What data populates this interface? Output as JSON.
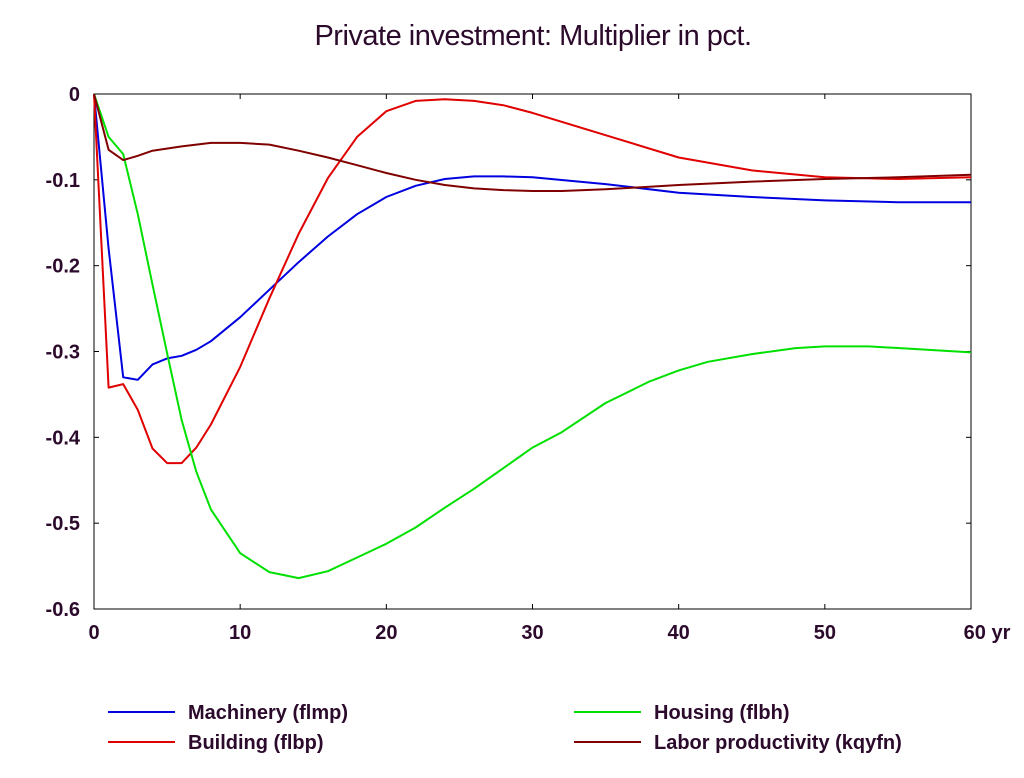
{
  "chart_data": {
    "type": "line",
    "title": "Private investment: Multiplier in pct.",
    "xlim": [
      0,
      60
    ],
    "ylim": [
      -0.6,
      0
    ],
    "x_ticks": [
      0,
      10,
      20,
      30,
      40,
      50,
      60
    ],
    "x_tick_labels": [
      "0",
      "10",
      "20",
      "30",
      "40",
      "50",
      "60 yr"
    ],
    "y_ticks": [
      0,
      -0.1,
      -0.2,
      -0.3,
      -0.4,
      -0.5,
      -0.6
    ],
    "y_tick_labels": [
      "0",
      "-0.1",
      "-0.2",
      "-0.3",
      "-0.4",
      "-0.5",
      "-0.6"
    ],
    "grid": false,
    "legend_position": "bottom",
    "series": [
      {
        "name": "Machinery (flmp)",
        "color": "#0000e0",
        "x": [
          0,
          1,
          2,
          3,
          4,
          5,
          6,
          7,
          8,
          10,
          12,
          14,
          16,
          18,
          20,
          22,
          24,
          26,
          28,
          30,
          35,
          40,
          45,
          50,
          55,
          60
        ],
        "y": [
          0,
          -0.18,
          -0.33,
          -0.333,
          -0.315,
          -0.308,
          -0.305,
          -0.298,
          -0.288,
          -0.26,
          -0.228,
          -0.196,
          -0.166,
          -0.14,
          -0.12,
          -0.107,
          -0.099,
          -0.096,
          -0.096,
          -0.097,
          -0.105,
          -0.115,
          -0.12,
          -0.124,
          -0.126,
          -0.126
        ]
      },
      {
        "name": "Building (flbp)",
        "color": "#e00000",
        "x": [
          0,
          1,
          2,
          3,
          4,
          5,
          6,
          7,
          8,
          10,
          12,
          14,
          16,
          18,
          20,
          22,
          24,
          26,
          28,
          30,
          35,
          40,
          45,
          50,
          55,
          60
        ],
        "y": [
          0,
          -0.342,
          -0.338,
          -0.368,
          -0.413,
          -0.43,
          -0.43,
          -0.412,
          -0.385,
          -0.318,
          -0.238,
          -0.163,
          -0.098,
          -0.05,
          -0.02,
          -0.008,
          -0.006,
          -0.008,
          -0.013,
          -0.022,
          -0.048,
          -0.074,
          -0.089,
          -0.097,
          -0.099,
          -0.097
        ]
      },
      {
        "name": "Housing (flbh)",
        "color": "#00e000",
        "x": [
          0,
          1,
          2,
          3,
          4,
          5,
          6,
          7,
          8,
          10,
          12,
          14,
          16,
          18,
          20,
          22,
          24,
          26,
          28,
          30,
          32,
          35,
          38,
          40,
          42,
          45,
          48,
          50,
          53,
          56,
          60
        ],
        "y": [
          0,
          -0.05,
          -0.07,
          -0.14,
          -0.222,
          -0.302,
          -0.38,
          -0.44,
          -0.484,
          -0.535,
          -0.557,
          -0.564,
          -0.556,
          -0.54,
          -0.524,
          -0.505,
          -0.482,
          -0.46,
          -0.436,
          -0.412,
          -0.394,
          -0.36,
          -0.335,
          -0.322,
          -0.312,
          -0.303,
          -0.296,
          -0.294,
          -0.294,
          -0.297,
          -0.301
        ]
      },
      {
        "name": "Labor productivity (kqyfn)",
        "color": "#800000",
        "x": [
          0,
          1,
          2,
          3,
          4,
          6,
          8,
          10,
          12,
          14,
          16,
          18,
          20,
          22,
          24,
          26,
          28,
          30,
          32,
          35,
          40,
          45,
          50,
          55,
          60
        ],
        "y": [
          0,
          -0.065,
          -0.077,
          -0.072,
          -0.066,
          -0.061,
          -0.057,
          -0.057,
          -0.059,
          -0.066,
          -0.074,
          -0.083,
          -0.092,
          -0.1,
          -0.106,
          -0.11,
          -0.112,
          -0.113,
          -0.113,
          -0.111,
          -0.106,
          -0.102,
          -0.099,
          -0.097,
          -0.094
        ]
      }
    ]
  }
}
